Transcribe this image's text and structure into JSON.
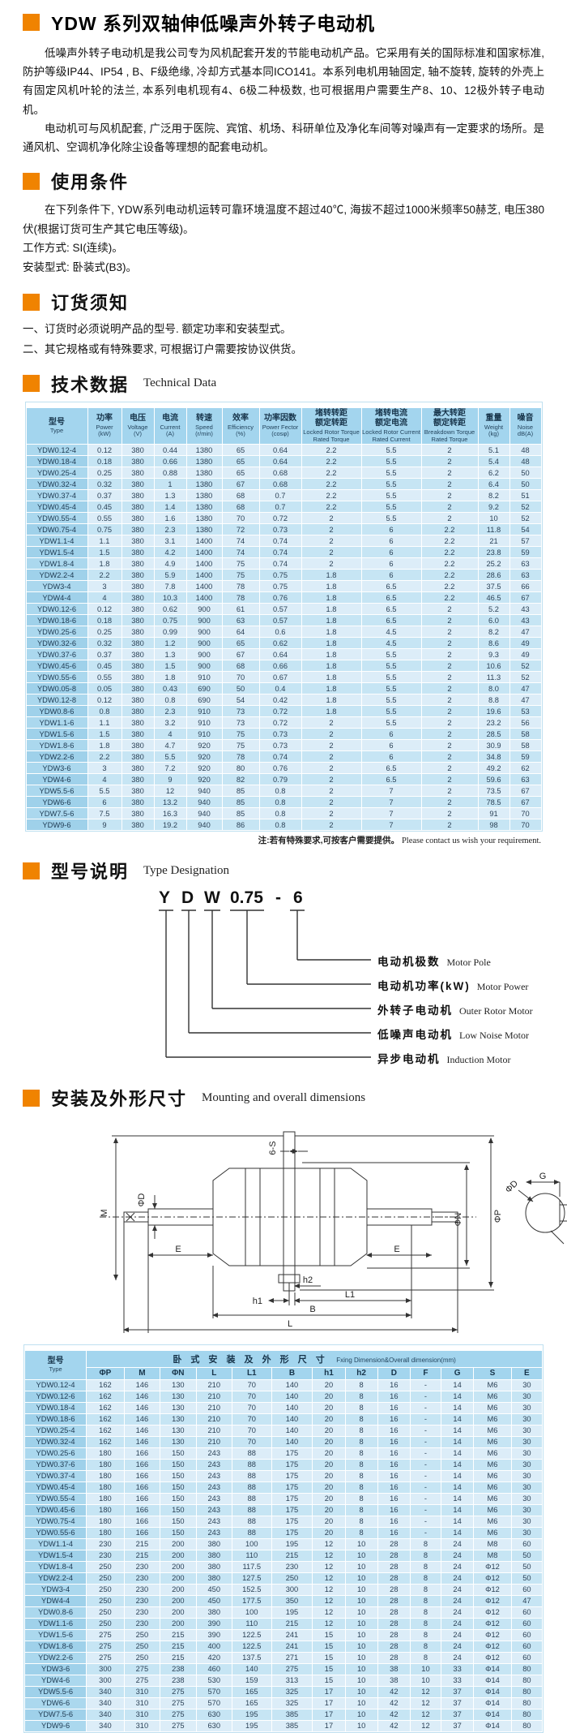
{
  "page_title": "YDW 系列双轴伸低噪声外转子电动机",
  "intro": {
    "p1": "低噪声外转子电动机是我公司专为风机配套开发的节能电动机产品。它采用有关的国际标准和国家标准,防护等级IP44、IP54 , B、F级绝缘, 冷却方式基本同ICO141。本系列电机用轴固定, 轴不旋转, 旋转的外壳上有固定风机叶轮的法兰, 本系列电机现有4、6极二种极数, 也可根据用户需要生产8、10、12极外转子电动机。",
    "p2": "电动机可与风机配套, 广泛用于医院、宾馆、机场、科研单位及净化车间等对噪声有一定要求的场所。是通风机、空调机净化除尘设备等理想的配套电动机。"
  },
  "usage": {
    "title": "使用条件",
    "p1": "在下列条件下, YDW系列电动机运转可靠环境温度不超过40℃, 海拔不超过1000米频率50赫芝, 电压380伏(根据订货可生产其它电压等级)。",
    "line1": "工作方式: SI(连续)。",
    "line2": "安装型式: 卧装式(B3)。"
  },
  "ordering": {
    "title": "订货须知",
    "item1": "一、订货时必须说明产品的型号. 额定功率和安装型式。",
    "item2": "二、其它规格或有特殊要求, 可根据订户需要按协议供货。"
  },
  "technical": {
    "title": "技术数据",
    "title_en": "Technical Data",
    "note_zh": "注:若有特殊要求,可按客户需要提供。",
    "note_en": "Please contact us wish your requirement."
  },
  "tech_table": {
    "headers": [
      [
        "型号",
        "Type"
      ],
      [
        "功率",
        "Power",
        "(kW)"
      ],
      [
        "电压",
        "Voltage",
        "(V)"
      ],
      [
        "电流",
        "Current",
        "(A)"
      ],
      [
        "转速",
        "Speed",
        "(r/min)"
      ],
      [
        "效率",
        "Efficiency",
        "(%)"
      ],
      [
        "功率因数",
        "Power Fector",
        "(cosφ)"
      ],
      [
        "堵转转距",
        "额定转距",
        "Locked Rotor Torque",
        "Rated Torque"
      ],
      [
        "堵转电流",
        "额定电流",
        "Locked Rotor Current",
        "Rated Current"
      ],
      [
        "最大转距",
        "额定转距",
        "Breakdown Torque",
        "Rated Torque"
      ],
      [
        "重量",
        "Weight",
        "(kg)"
      ],
      [
        "噪音",
        "Noise",
        "dB(A)"
      ]
    ],
    "rows": [
      [
        "YDW0.12-4",
        "0.12",
        "380",
        "0.44",
        "1380",
        "65",
        "0.64",
        "2.2",
        "5.5",
        "2",
        "5.1",
        "48"
      ],
      [
        "YDW0.18-4",
        "0.18",
        "380",
        "0.66",
        "1380",
        "65",
        "0.64",
        "2.2",
        "5.5",
        "2",
        "5.4",
        "48"
      ],
      [
        "YDW0.25-4",
        "0.25",
        "380",
        "0.88",
        "1380",
        "65",
        "0.68",
        "2.2",
        "5.5",
        "2",
        "6.2",
        "50"
      ],
      [
        "YDW0.32-4",
        "0.32",
        "380",
        "1",
        "1380",
        "67",
        "0.68",
        "2.2",
        "5.5",
        "2",
        "6.4",
        "50"
      ],
      [
        "YDW0.37-4",
        "0.37",
        "380",
        "1.3",
        "1380",
        "68",
        "0.7",
        "2.2",
        "5.5",
        "2",
        "8.2",
        "51"
      ],
      [
        "YDW0.45-4",
        "0.45",
        "380",
        "1.4",
        "1380",
        "68",
        "0.7",
        "2.2",
        "5.5",
        "2",
        "9.2",
        "52"
      ],
      [
        "YDW0.55-4",
        "0.55",
        "380",
        "1.6",
        "1380",
        "70",
        "0.72",
        "2",
        "5.5",
        "2",
        "10",
        "52"
      ],
      [
        "YDW0.75-4",
        "0.75",
        "380",
        "2.3",
        "1380",
        "72",
        "0.73",
        "2",
        "6",
        "2.2",
        "11.8",
        "54"
      ],
      [
        "YDW1.1-4",
        "1.1",
        "380",
        "3.1",
        "1400",
        "74",
        "0.74",
        "2",
        "6",
        "2.2",
        "21",
        "57"
      ],
      [
        "YDW1.5-4",
        "1.5",
        "380",
        "4.2",
        "1400",
        "74",
        "0.74",
        "2",
        "6",
        "2.2",
        "23.8",
        "59"
      ],
      [
        "YDW1.8-4",
        "1.8",
        "380",
        "4.9",
        "1400",
        "75",
        "0.74",
        "2",
        "6",
        "2.2",
        "25.2",
        "63"
      ],
      [
        "YDW2.2-4",
        "2.2",
        "380",
        "5.9",
        "1400",
        "75",
        "0.75",
        "1.8",
        "6",
        "2.2",
        "28.6",
        "63"
      ],
      [
        "YDW3-4",
        "3",
        "380",
        "7.8",
        "1400",
        "78",
        "0.75",
        "1.8",
        "6.5",
        "2.2",
        "37.5",
        "66"
      ],
      [
        "YDW4-4",
        "4",
        "380",
        "10.3",
        "1400",
        "78",
        "0.76",
        "1.8",
        "6.5",
        "2.2",
        "46.5",
        "67"
      ],
      [
        "YDW0.12-6",
        "0.12",
        "380",
        "0.62",
        "900",
        "61",
        "0.57",
        "1.8",
        "6.5",
        "2",
        "5.2",
        "43"
      ],
      [
        "YDW0.18-6",
        "0.18",
        "380",
        "0.75",
        "900",
        "63",
        "0.57",
        "1.8",
        "6.5",
        "2",
        "6.0",
        "43"
      ],
      [
        "YDW0.25-6",
        "0.25",
        "380",
        "0.99",
        "900",
        "64",
        "0.6",
        "1.8",
        "4.5",
        "2",
        "8.2",
        "47"
      ],
      [
        "YDW0.32-6",
        "0.32",
        "380",
        "1.2",
        "900",
        "65",
        "0.62",
        "1.8",
        "4.5",
        "2",
        "8.6",
        "49"
      ],
      [
        "YDW0.37-6",
        "0.37",
        "380",
        "1.3",
        "900",
        "67",
        "0.64",
        "1.8",
        "5.5",
        "2",
        "9.3",
        "49"
      ],
      [
        "YDW0.45-6",
        "0.45",
        "380",
        "1.5",
        "900",
        "68",
        "0.66",
        "1.8",
        "5.5",
        "2",
        "10.6",
        "52"
      ],
      [
        "YDW0.55-6",
        "0.55",
        "380",
        "1.8",
        "910",
        "70",
        "0.67",
        "1.8",
        "5.5",
        "2",
        "11.3",
        "52"
      ],
      [
        "YDW0.05-8",
        "0.05",
        "380",
        "0.43",
        "690",
        "50",
        "0.4",
        "1.8",
        "5.5",
        "2",
        "8.0",
        "47"
      ],
      [
        "YDW0.12-8",
        "0.12",
        "380",
        "0.8",
        "690",
        "54",
        "0.42",
        "1.8",
        "5.5",
        "2",
        "8.8",
        "47"
      ],
      [
        "YDW0.8-6",
        "0.8",
        "380",
        "2.3",
        "910",
        "73",
        "0.72",
        "1.8",
        "5.5",
        "2",
        "19.6",
        "53"
      ],
      [
        "YDW1.1-6",
        "1.1",
        "380",
        "3.2",
        "910",
        "73",
        "0.72",
        "2",
        "5.5",
        "2",
        "23.2",
        "56"
      ],
      [
        "YDW1.5-6",
        "1.5",
        "380",
        "4",
        "910",
        "75",
        "0.73",
        "2",
        "6",
        "2",
        "28.5",
        "58"
      ],
      [
        "YDW1.8-6",
        "1.8",
        "380",
        "4.7",
        "920",
        "75",
        "0.73",
        "2",
        "6",
        "2",
        "30.9",
        "58"
      ],
      [
        "YDW2.2-6",
        "2.2",
        "380",
        "5.5",
        "920",
        "78",
        "0.74",
        "2",
        "6",
        "2",
        "34.8",
        "59"
      ],
      [
        "YDW3-6",
        "3",
        "380",
        "7.2",
        "920",
        "80",
        "0.76",
        "2",
        "6.5",
        "2",
        "49.2",
        "62"
      ],
      [
        "YDW4-6",
        "4",
        "380",
        "9",
        "920",
        "82",
        "0.79",
        "2",
        "6.5",
        "2",
        "59.6",
        "63"
      ],
      [
        "YDW5.5-6",
        "5.5",
        "380",
        "12",
        "940",
        "85",
        "0.8",
        "2",
        "7",
        "2",
        "73.5",
        "67"
      ],
      [
        "YDW6-6",
        "6",
        "380",
        "13.2",
        "940",
        "85",
        "0.8",
        "2",
        "7",
        "2",
        "78.5",
        "67"
      ],
      [
        "YDW7.5-6",
        "7.5",
        "380",
        "16.3",
        "940",
        "85",
        "0.8",
        "2",
        "7",
        "2",
        "91",
        "70"
      ],
      [
        "YDW9-6",
        "9",
        "380",
        "19.2",
        "940",
        "86",
        "0.8",
        "2",
        "7",
        "2",
        "98",
        "70"
      ]
    ]
  },
  "designation": {
    "title": "型号说明",
    "title_en": "Type Designation",
    "code": [
      "Y",
      "D",
      "W",
      "0.75",
      "-",
      "6"
    ],
    "labels": [
      {
        "zh": "电动机极数",
        "en": "Motor Pole"
      },
      {
        "zh": "电动机功率(kW)",
        "en": "Motor Power"
      },
      {
        "zh": "外转子电动机",
        "en": "Outer Rotor Motor"
      },
      {
        "zh": "低噪声电动机",
        "en": "Low Noise Motor"
      },
      {
        "zh": "异步电动机",
        "en": "Induction Motor"
      }
    ]
  },
  "mounting": {
    "title": "安装及外形尺寸",
    "title_en": "Mounting and overall dimensions",
    "dim_labels": {
      "m": "M",
      "phi_d": "ΦD",
      "e": "E",
      "six_s": "6-S",
      "phi_n": "ΦN",
      "phi_p": "ΦP",
      "h1": "h1",
      "h2": "h2",
      "l1": "L1",
      "b": "B",
      "l": "L",
      "g": "G",
      "f": "F"
    }
  },
  "dim_table": {
    "corner": [
      "型号",
      "Type"
    ],
    "group_zh": "卧 式 安 装 及 外 形 尺 寸",
    "group_en": "Fxing Dimension&Overall dimension(mm)",
    "headers": [
      "ΦP",
      "M",
      "ΦN",
      "L",
      "L1",
      "B",
      "h1",
      "h2",
      "D",
      "F",
      "G",
      "S",
      "E"
    ],
    "rows": [
      [
        "YDW0.12-4",
        "162",
        "146",
        "130",
        "210",
        "70",
        "140",
        "20",
        "8",
        "16",
        "-",
        "14",
        "M6",
        "30"
      ],
      [
        "YDW0.12-6",
        "162",
        "146",
        "130",
        "210",
        "70",
        "140",
        "20",
        "8",
        "16",
        "-",
        "14",
        "M6",
        "30"
      ],
      [
        "YDW0.18-4",
        "162",
        "146",
        "130",
        "210",
        "70",
        "140",
        "20",
        "8",
        "16",
        "-",
        "14",
        "M6",
        "30"
      ],
      [
        "YDW0.18-6",
        "162",
        "146",
        "130",
        "210",
        "70",
        "140",
        "20",
        "8",
        "16",
        "-",
        "14",
        "M6",
        "30"
      ],
      [
        "YDW0.25-4",
        "162",
        "146",
        "130",
        "210",
        "70",
        "140",
        "20",
        "8",
        "16",
        "-",
        "14",
        "M6",
        "30"
      ],
      [
        "YDW0.32-4",
        "162",
        "146",
        "130",
        "210",
        "70",
        "140",
        "20",
        "8",
        "16",
        "-",
        "14",
        "M6",
        "30"
      ],
      [
        "YDW0.25-6",
        "180",
        "166",
        "150",
        "243",
        "88",
        "175",
        "20",
        "8",
        "16",
        "-",
        "14",
        "M6",
        "30"
      ],
      [
        "YDW0.37-6",
        "180",
        "166",
        "150",
        "243",
        "88",
        "175",
        "20",
        "8",
        "16",
        "-",
        "14",
        "M6",
        "30"
      ],
      [
        "YDW0.37-4",
        "180",
        "166",
        "150",
        "243",
        "88",
        "175",
        "20",
        "8",
        "16",
        "-",
        "14",
        "M6",
        "30"
      ],
      [
        "YDW0.45-4",
        "180",
        "166",
        "150",
        "243",
        "88",
        "175",
        "20",
        "8",
        "16",
        "-",
        "14",
        "M6",
        "30"
      ],
      [
        "YDW0.55-4",
        "180",
        "166",
        "150",
        "243",
        "88",
        "175",
        "20",
        "8",
        "16",
        "-",
        "14",
        "M6",
        "30"
      ],
      [
        "YDW0.45-6",
        "180",
        "166",
        "150",
        "243",
        "88",
        "175",
        "20",
        "8",
        "16",
        "-",
        "14",
        "M6",
        "30"
      ],
      [
        "YDW0.75-4",
        "180",
        "166",
        "150",
        "243",
        "88",
        "175",
        "20",
        "8",
        "16",
        "-",
        "14",
        "M6",
        "30"
      ],
      [
        "YDW0.55-6",
        "180",
        "166",
        "150",
        "243",
        "88",
        "175",
        "20",
        "8",
        "16",
        "-",
        "14",
        "M6",
        "30"
      ],
      [
        "YDW1.1-4",
        "230",
        "215",
        "200",
        "380",
        "100",
        "195",
        "12",
        "10",
        "28",
        "8",
        "24",
        "M8",
        "60"
      ],
      [
        "YDW1.5-4",
        "230",
        "215",
        "200",
        "380",
        "110",
        "215",
        "12",
        "10",
        "28",
        "8",
        "24",
        "M8",
        "50"
      ],
      [
        "YDW1.8-4",
        "250",
        "230",
        "200",
        "380",
        "117.5",
        "230",
        "12",
        "10",
        "28",
        "8",
        "24",
        "Φ12",
        "50"
      ],
      [
        "YDW2.2-4",
        "250",
        "230",
        "200",
        "380",
        "127.5",
        "250",
        "12",
        "10",
        "28",
        "8",
        "24",
        "Φ12",
        "50"
      ],
      [
        "YDW3-4",
        "250",
        "230",
        "200",
        "450",
        "152.5",
        "300",
        "12",
        "10",
        "28",
        "8",
        "24",
        "Φ12",
        "60"
      ],
      [
        "YDW4-4",
        "250",
        "230",
        "200",
        "450",
        "177.5",
        "350",
        "12",
        "10",
        "28",
        "8",
        "24",
        "Φ12",
        "47"
      ],
      [
        "YDW0.8-6",
        "250",
        "230",
        "200",
        "380",
        "100",
        "195",
        "12",
        "10",
        "28",
        "8",
        "24",
        "Φ12",
        "60"
      ],
      [
        "YDW1.1-6",
        "250",
        "230",
        "200",
        "390",
        "110",
        "215",
        "12",
        "10",
        "28",
        "8",
        "24",
        "Φ12",
        "60"
      ],
      [
        "YDW1.5-6",
        "275",
        "250",
        "215",
        "390",
        "122.5",
        "241",
        "15",
        "10",
        "28",
        "8",
        "24",
        "Φ12",
        "60"
      ],
      [
        "YDW1.8-6",
        "275",
        "250",
        "215",
        "400",
        "122.5",
        "241",
        "15",
        "10",
        "28",
        "8",
        "24",
        "Φ12",
        "60"
      ],
      [
        "YDW2.2-6",
        "275",
        "250",
        "215",
        "420",
        "137.5",
        "271",
        "15",
        "10",
        "28",
        "8",
        "24",
        "Φ12",
        "60"
      ],
      [
        "YDW3-6",
        "300",
        "275",
        "238",
        "460",
        "140",
        "275",
        "15",
        "10",
        "38",
        "10",
        "33",
        "Φ14",
        "80"
      ],
      [
        "YDW4-6",
        "300",
        "275",
        "238",
        "530",
        "159",
        "313",
        "15",
        "10",
        "38",
        "10",
        "33",
        "Φ14",
        "80"
      ],
      [
        "YDW5.5-6",
        "340",
        "310",
        "275",
        "570",
        "165",
        "325",
        "17",
        "10",
        "42",
        "12",
        "37",
        "Φ14",
        "80"
      ],
      [
        "YDW6-6",
        "340",
        "310",
        "275",
        "570",
        "165",
        "325",
        "17",
        "10",
        "42",
        "12",
        "37",
        "Φ14",
        "80"
      ],
      [
        "YDW7.5-6",
        "340",
        "310",
        "275",
        "630",
        "195",
        "385",
        "17",
        "10",
        "42",
        "12",
        "37",
        "Φ14",
        "80"
      ],
      [
        "YDW9-6",
        "340",
        "310",
        "275",
        "630",
        "195",
        "385",
        "17",
        "10",
        "42",
        "12",
        "37",
        "Φ14",
        "80"
      ]
    ]
  },
  "colors": {
    "accent_orange": "#f08300",
    "table_header_blue": "#a3d5ee"
  }
}
